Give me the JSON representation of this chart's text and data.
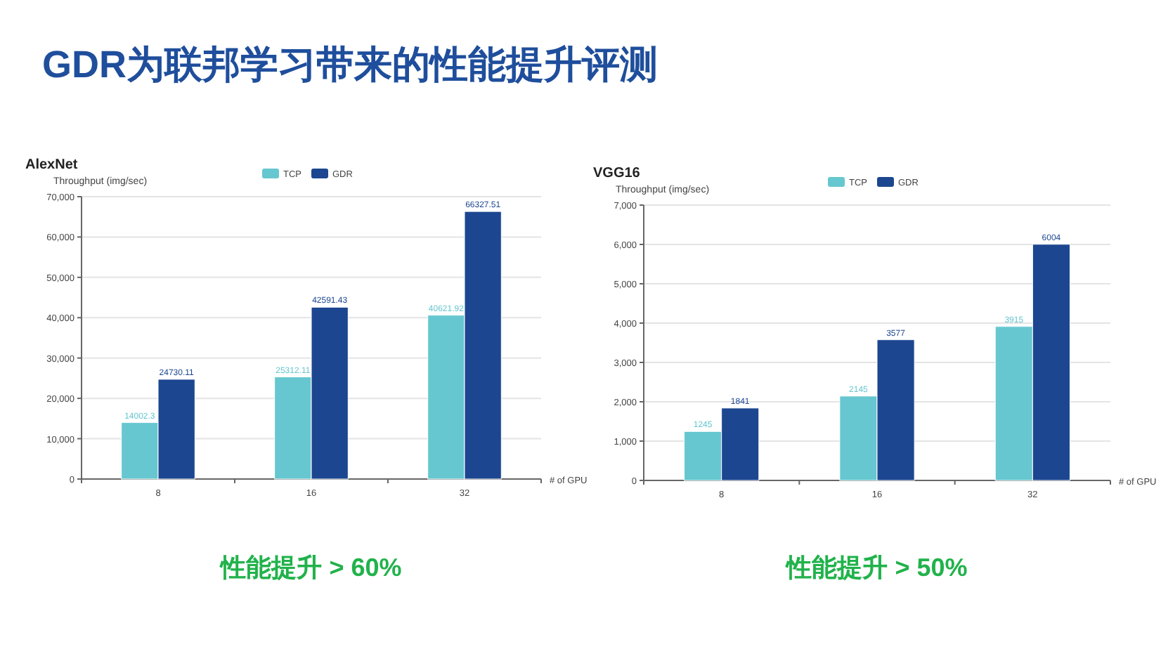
{
  "chart_data": [
    {
      "type": "other",
      "title": "GDR为联邦学习带来的性能提升评测"
    },
    {
      "type": "bar",
      "title": "AlexNet",
      "ylabel": "Throughput (img/sec)",
      "xlabel": "# of GPU",
      "categories": [
        "8",
        "16",
        "32"
      ],
      "series": [
        {
          "name": "TCP",
          "color": "#66c7d0",
          "values": [
            14002.3,
            25312.11,
            40621.92
          ]
        },
        {
          "name": "GDR",
          "color": "#1c4690",
          "values": [
            24730.11,
            42591.43,
            66327.51
          ]
        }
      ],
      "ylim": [
        0,
        70000
      ],
      "yticks": [
        0,
        {
          "value": 10000,
          "label": "10,000"
        },
        {
          "value": 20000,
          "label": "20,000"
        },
        {
          "value": 30000,
          "label": "30,000"
        },
        {
          "value": 40000,
          "label": "40,000"
        },
        {
          "value": 50000,
          "label": "50,000"
        },
        {
          "value": 60000,
          "label": "60,000"
        },
        {
          "value": 70000,
          "label": "70,000"
        }
      ],
      "grid": "y",
      "legend": "top",
      "data_labels": true,
      "annotations": [
        "性能提升 > 60%"
      ]
    },
    {
      "type": "bar",
      "title": "VGG16",
      "ylabel": "Throughput (img/sec)",
      "xlabel": "# of GPU",
      "categories": [
        "8",
        "16",
        "32"
      ],
      "series": [
        {
          "name": "TCP",
          "color": "#66c7d0",
          "values": [
            1245,
            2145,
            3915
          ]
        },
        {
          "name": "GDR",
          "color": "#1c4690",
          "values": [
            1841,
            3577,
            6004
          ]
        }
      ],
      "ylim": [
        0,
        7000
      ],
      "yticks": [
        0,
        {
          "value": 1000,
          "label": "1,000"
        },
        {
          "value": 2000,
          "label": "2,000"
        },
        {
          "value": 3000,
          "label": "3,000"
        },
        {
          "value": 4000,
          "label": "4,000"
        },
        {
          "value": 5000,
          "label": "5,000"
        },
        {
          "value": 6000,
          "label": "6,000"
        },
        {
          "value": 7000,
          "label": "7,000"
        }
      ],
      "grid": "y",
      "legend": "top",
      "data_labels": true,
      "annotations": [
        "性能提升 > 50%"
      ]
    }
  ]
}
